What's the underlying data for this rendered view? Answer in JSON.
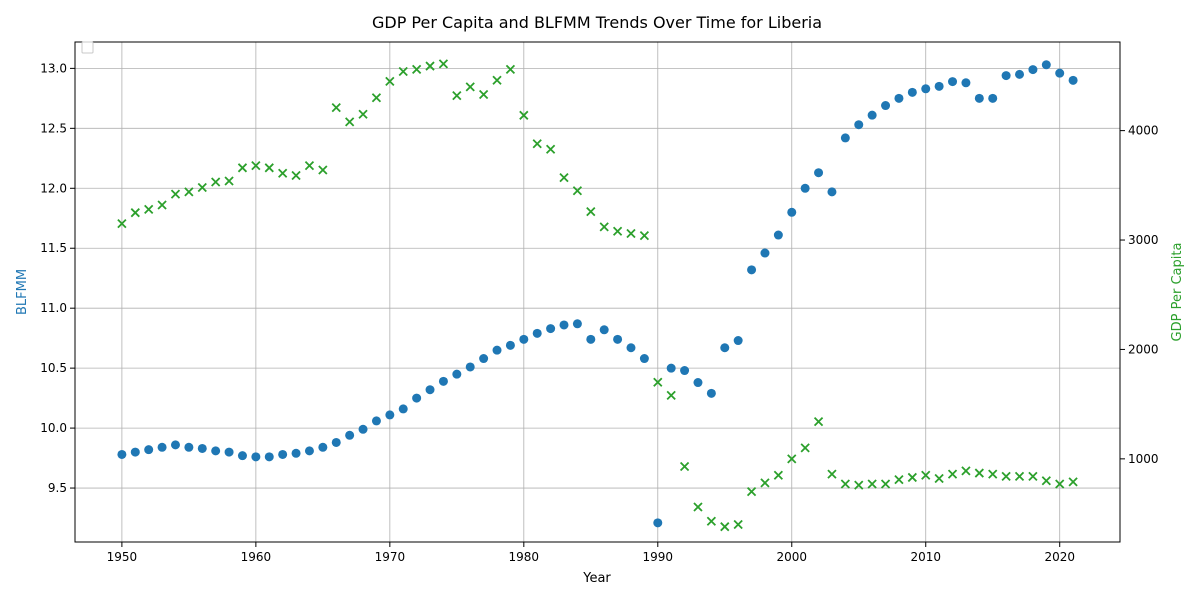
{
  "chart_data": {
    "type": "scatter",
    "title": "GDP Per Capita and BLFMM Trends Over Time for Liberia",
    "xlabel": "Year",
    "ylabel_left": "BLFMM",
    "ylabel_right": "GDP Per Capita",
    "xlim": [
      1946.5,
      2024.5
    ],
    "ylim_left": [
      9.05,
      13.22
    ],
    "ylim_right": [
      240,
      4810
    ],
    "xticks": [
      1950,
      1960,
      1970,
      1980,
      1990,
      2000,
      2010,
      2020
    ],
    "yticks_left": [
      9.5,
      10.0,
      10.5,
      11.0,
      11.5,
      12.0,
      12.5,
      13.0
    ],
    "yticks_right": [
      1000,
      2000,
      3000,
      4000
    ],
    "grid": true,
    "legend": "top-left",
    "colors": {
      "left": "#1f77b4",
      "right": "#2ca02c"
    },
    "series": [
      {
        "axis": "left",
        "marker": "circle",
        "x": [
          1950,
          1951,
          1952,
          1953,
          1954,
          1955,
          1956,
          1957,
          1958,
          1959,
          1960,
          1961,
          1962,
          1963,
          1964,
          1965,
          1966,
          1967,
          1968,
          1969,
          1970,
          1971,
          1972,
          1973,
          1974,
          1975,
          1976,
          1977,
          1978,
          1979,
          1980,
          1981,
          1982,
          1983,
          1984,
          1985,
          1986,
          1987,
          1988,
          1989,
          1990,
          1991,
          1992,
          1993,
          1994,
          1995,
          1996,
          1997,
          1998,
          1999,
          2000,
          2001,
          2002,
          2003,
          2004,
          2005,
          2006,
          2007,
          2008,
          2009,
          2010,
          2011,
          2012,
          2013,
          2014,
          2015,
          2016,
          2017,
          2018,
          2019,
          2020,
          2021
        ],
        "y": [
          9.78,
          9.8,
          9.82,
          9.84,
          9.86,
          9.84,
          9.83,
          9.81,
          9.8,
          9.77,
          9.76,
          9.76,
          9.78,
          9.79,
          9.81,
          9.84,
          9.88,
          9.94,
          9.99,
          10.06,
          10.11,
          10.16,
          10.25,
          10.32,
          10.39,
          10.45,
          10.51,
          10.58,
          10.65,
          10.69,
          10.74,
          10.79,
          10.83,
          10.86,
          10.87,
          10.74,
          10.82,
          10.74,
          10.67,
          10.58,
          9.21,
          10.5,
          10.48,
          10.38,
          10.29,
          10.67,
          10.73,
          11.32,
          11.46,
          11.61,
          11.8,
          12.0,
          12.13,
          11.97,
          12.42,
          12.53,
          12.61,
          12.69,
          12.75,
          12.8,
          12.83,
          12.85,
          12.89,
          12.88,
          12.75,
          12.75,
          12.94,
          12.95,
          12.99,
          13.03,
          12.96,
          12.9
        ]
      },
      {
        "axis": "right",
        "marker": "x",
        "x": [
          1950,
          1951,
          1952,
          1953,
          1954,
          1955,
          1956,
          1957,
          1958,
          1959,
          1960,
          1961,
          1962,
          1963,
          1964,
          1965,
          1966,
          1967,
          1968,
          1969,
          1970,
          1971,
          1972,
          1973,
          1974,
          1975,
          1976,
          1977,
          1978,
          1979,
          1980,
          1981,
          1982,
          1983,
          1984,
          1985,
          1986,
          1987,
          1988,
          1989,
          1990,
          1991,
          1992,
          1993,
          1994,
          1995,
          1996,
          1997,
          1998,
          1999,
          2000,
          2001,
          2002,
          2003,
          2004,
          2005,
          2006,
          2007,
          2008,
          2009,
          2010,
          2011,
          2012,
          2013,
          2014,
          2015,
          2016,
          2017,
          2018,
          2019,
          2020,
          2021
        ],
        "y": [
          3150,
          3250,
          3280,
          3320,
          3420,
          3440,
          3480,
          3530,
          3540,
          3660,
          3680,
          3660,
          3610,
          3590,
          3680,
          3640,
          4210,
          4080,
          4150,
          4300,
          4450,
          4540,
          4560,
          4590,
          4610,
          4320,
          4400,
          4330,
          4460,
          4560,
          4140,
          3880,
          3830,
          3570,
          3450,
          3260,
          3120,
          3080,
          3060,
          3040,
          1700,
          1580,
          930,
          560,
          430,
          380,
          400,
          700,
          780,
          850,
          1000,
          1100,
          1340,
          860,
          770,
          760,
          770,
          770,
          810,
          830,
          850,
          820,
          860,
          890,
          870,
          860,
          840,
          840,
          840,
          800,
          770,
          790
        ]
      }
    ]
  }
}
